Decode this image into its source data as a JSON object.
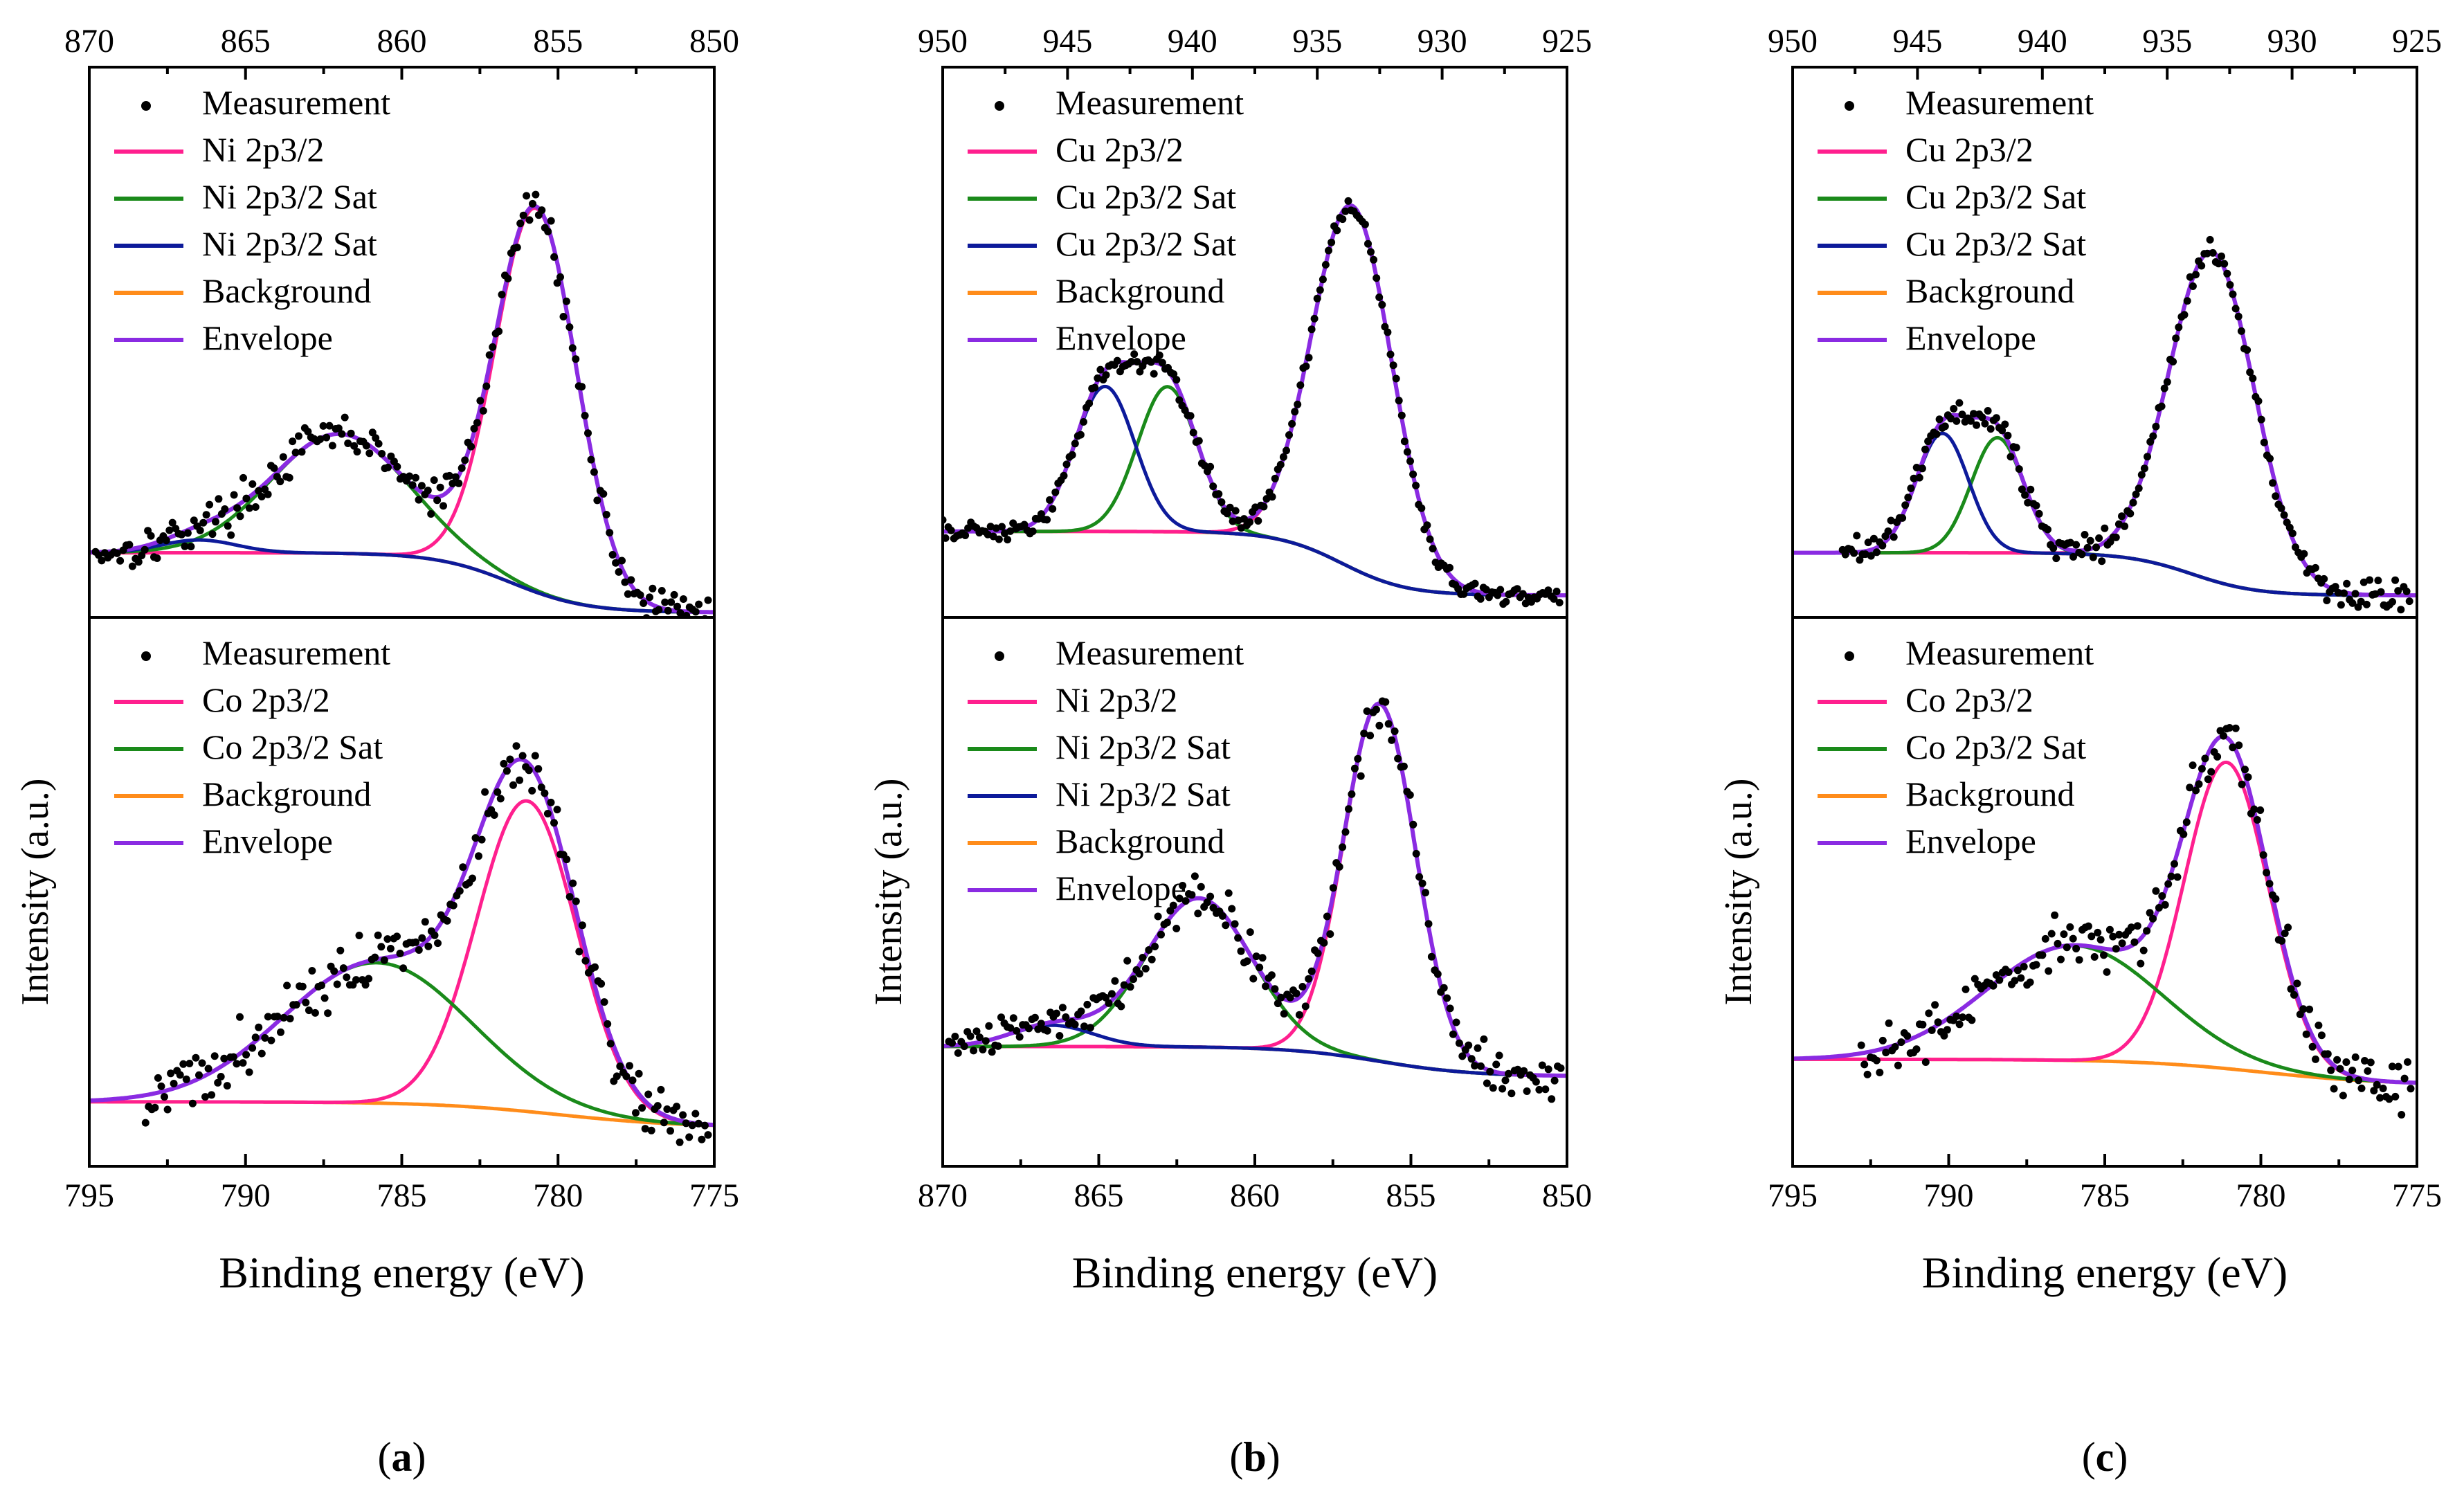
{
  "colors": {
    "measurement": "#000000",
    "main_peak": "#ff1f8e",
    "satellite_green": "#1a8a1a",
    "satellite_blue": "#0d1a9a",
    "background": "#ff8c1a",
    "envelope": "#8a2be2"
  },
  "panel_labels": [
    "(a)",
    "(b)",
    "(c)"
  ],
  "shared_ylabel": "Intensity (a.u.)",
  "shared_xlabel": "Binding energy (eV)",
  "chart_data": [
    {
      "id": "a-top",
      "type": "line",
      "column": 0,
      "row": 0,
      "xaxis": "top",
      "xticks": [
        870,
        865,
        860,
        855,
        850
      ],
      "xlim": [
        870,
        850
      ],
      "ylim": [
        0,
        1.2
      ],
      "legend": [
        "Measurement",
        "Ni 2p3/2",
        "Ni 2p3/2 Sat",
        "Ni 2p3/2 Sat",
        "Background",
        "Envelope"
      ],
      "background": {
        "high": 0.1,
        "low": -0.04,
        "center": 856.5,
        "width": 1.2
      },
      "peaks": [
        {
          "name": "Ni 2p3/2",
          "role": "main_peak",
          "center": 855.7,
          "height": 0.9,
          "sigma": 1.3
        },
        {
          "name": "Ni 2p3/2 Sat",
          "role": "satellite_green",
          "center": 862,
          "height": 0.28,
          "sigma": 2.2
        },
        {
          "name": "Ni 2p3/2 Sat",
          "role": "satellite_blue",
          "center": 866.5,
          "height": 0.03,
          "sigma": 1.2
        }
      ],
      "points": {
        "start": 869.8,
        "end": 850.2,
        "count": 200,
        "noise": 0.022
      }
    },
    {
      "id": "a-bottom",
      "type": "line",
      "column": 0,
      "row": 1,
      "xaxis": "bottom",
      "xticks": [
        795,
        790,
        785,
        780,
        775
      ],
      "xlim": [
        795,
        775
      ],
      "ylim": [
        0,
        1.2
      ],
      "legend": [
        "Measurement",
        "Co 2p3/2",
        "Co 2p3/2 Sat",
        "Background",
        "Envelope"
      ],
      "background": {
        "high": 0.1,
        "low": 0.04,
        "center": 780,
        "width": 2.0
      },
      "peaks": [
        {
          "name": "Co 2p3/2",
          "role": "main_peak",
          "center": 781,
          "height": 0.73,
          "sigma": 1.6
        },
        {
          "name": "Co 2p3/2 Sat",
          "role": "satellite_green",
          "center": 785.8,
          "height": 0.33,
          "sigma": 3.0
        }
      ],
      "points": {
        "start": 793.2,
        "end": 775.2,
        "count": 180,
        "noise": 0.035
      }
    },
    {
      "id": "b-top",
      "type": "line",
      "column": 1,
      "row": 0,
      "xaxis": "top",
      "xticks": [
        950,
        945,
        940,
        935,
        930,
        925
      ],
      "xlim": [
        950,
        925
      ],
      "ylim": [
        0,
        1.2
      ],
      "legend": [
        "Measurement",
        "Cu 2p3/2",
        "Cu 2p3/2 Sat",
        "Cu 2p3/2 Sat",
        "Background",
        "Envelope"
      ],
      "background": {
        "high": 0.15,
        "low": 0.0,
        "center": 934,
        "width": 1.3
      },
      "peaks": [
        {
          "name": "Cu 2p3/2",
          "role": "main_peak",
          "center": 933.6,
          "height": 0.85,
          "sigma": 1.6
        },
        {
          "name": "Cu 2p3/2 Sat",
          "role": "satellite_green",
          "center": 941,
          "height": 0.34,
          "sigma": 1.2
        },
        {
          "name": "Cu 2p3/2 Sat",
          "role": "satellite_blue",
          "center": 943.5,
          "height": 0.34,
          "sigma": 1.2
        }
      ],
      "points": {
        "start": 950,
        "end": 925.3,
        "count": 220,
        "noise": 0.012
      }
    },
    {
      "id": "b-bottom",
      "type": "line",
      "column": 1,
      "row": 1,
      "xaxis": "bottom",
      "xticks": [
        870,
        865,
        860,
        855,
        850
      ],
      "xlim": [
        870,
        850
      ],
      "ylim": [
        0,
        1.2
      ],
      "legend": [
        "Measurement",
        "Ni 2p3/2",
        "Ni 2p3/2 Sat",
        "Ni 2p3/2 Sat",
        "Background",
        "Envelope"
      ],
      "background": {
        "high": 0.23,
        "low": 0.16,
        "center": 856,
        "width": 1.5
      },
      "peaks": [
        {
          "name": "Ni 2p3/2",
          "role": "main_peak",
          "center": 856,
          "height": 0.84,
          "sigma": 1.15
        },
        {
          "name": "Ni 2p3/2 Sat",
          "role": "satellite_green",
          "center": 861.8,
          "height": 0.35,
          "sigma": 1.7
        },
        {
          "name": "Ni 2p3/2 Sat",
          "role": "satellite_blue",
          "center": 866.5,
          "height": 0.05,
          "sigma": 1.3
        }
      ],
      "points": {
        "start": 869.8,
        "end": 850.2,
        "count": 200,
        "noise": 0.028
      }
    },
    {
      "id": "c-top",
      "type": "line",
      "column": 2,
      "row": 0,
      "xaxis": "top",
      "xticks": [
        950,
        945,
        940,
        935,
        930,
        925
      ],
      "xlim": [
        950,
        925
      ],
      "ylim": [
        0,
        1.2
      ],
      "legend": [
        "Measurement",
        "Cu 2p3/2",
        "Cu 2p3/2 Sat",
        "Cu 2p3/2 Sat",
        "Background",
        "Envelope"
      ],
      "background": {
        "high": 0.1,
        "low": 0.0,
        "center": 934,
        "width": 1.3
      },
      "peaks": [
        {
          "name": "Cu 2p3/2",
          "role": "main_peak",
          "center": 933.2,
          "height": 0.77,
          "sigma": 1.7
        },
        {
          "name": "Cu 2p3/2 Sat",
          "role": "satellite_green",
          "center": 941.8,
          "height": 0.27,
          "sigma": 1.05
        },
        {
          "name": "Cu 2p3/2 Sat",
          "role": "satellite_blue",
          "center": 944,
          "height": 0.28,
          "sigma": 1.05
        }
      ],
      "points": {
        "start": 948,
        "end": 925.3,
        "count": 200,
        "noise": 0.015
      }
    },
    {
      "id": "c-bottom",
      "type": "line",
      "column": 2,
      "row": 1,
      "xaxis": "bottom",
      "xticks": [
        795,
        790,
        785,
        780,
        775
      ],
      "xlim": [
        795,
        775
      ],
      "ylim": [
        0,
        1.2
      ],
      "legend": [
        "Measurement",
        "Co 2p3/2",
        "Co 2p3/2 Sat",
        "Background",
        "Envelope"
      ],
      "background": {
        "high": 0.2,
        "low": 0.14,
        "center": 780,
        "width": 2.0
      },
      "peaks": [
        {
          "name": "Co 2p3/2",
          "role": "main_peak",
          "center": 781.1,
          "height": 0.72,
          "sigma": 1.35
        },
        {
          "name": "Co 2p3/2 Sat",
          "role": "satellite_green",
          "center": 786,
          "height": 0.27,
          "sigma": 2.8
        }
      ],
      "points": {
        "start": 792.8,
        "end": 775.2,
        "count": 180,
        "noise": 0.035
      }
    }
  ]
}
